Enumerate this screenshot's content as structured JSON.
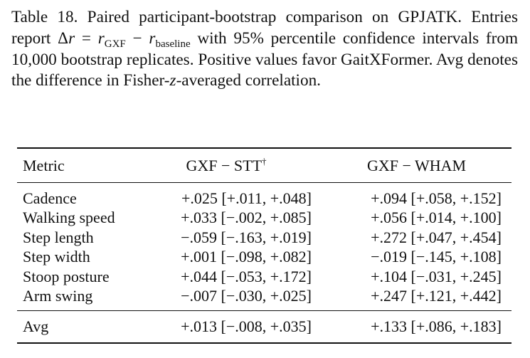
{
  "caption": {
    "prefix": "Table 18. Paired participant-bootstrap comparison on GPJATK. Entries report ",
    "delta_symbol": "Δ",
    "r_symbol": "r",
    "equals": " = ",
    "gxf_sub": "GXF",
    "minus": " − ",
    "baseline_sub": "baseline",
    "suffix_1": " with 95% percentile confidence intervals from 10,000 bootstrap replicates. Positive values favor GaitXFormer. Avg denotes the difference in Fisher-",
    "z_symbol": "z",
    "suffix_2": "-averaged correlation."
  },
  "table": {
    "headers": {
      "metric": "Metric",
      "col1": "GXF − STT",
      "col1_mark": "†",
      "col2": "GXF − WHAM"
    },
    "rows": [
      {
        "metric": "Cadence",
        "stt": "+.025 [+.011, +.048]",
        "wham": "+.094 [+.058, +.152]"
      },
      {
        "metric": "Walking speed",
        "stt": "+.033 [−.002, +.085]",
        "wham": "+.056 [+.014, +.100]"
      },
      {
        "metric": "Step length",
        "stt": "−.059 [−.163, +.019]",
        "wham": "+.272 [+.047, +.454]"
      },
      {
        "metric": "Step width",
        "stt": "+.001 [−.098, +.082]",
        "wham": "−.019 [−.145, +.108]"
      },
      {
        "metric": "Stoop posture",
        "stt": "+.044 [−.053, +.172]",
        "wham": "+.104 [−.031, +.245]"
      },
      {
        "metric": "Arm swing",
        "stt": "−.007 [−.030, +.025]",
        "wham": "+.247 [+.121, +.442]"
      }
    ],
    "avg": {
      "metric": "Avg",
      "stt": "+.013 [−.008, +.035]",
      "wham": "+.133 [+.086, +.183]"
    }
  }
}
